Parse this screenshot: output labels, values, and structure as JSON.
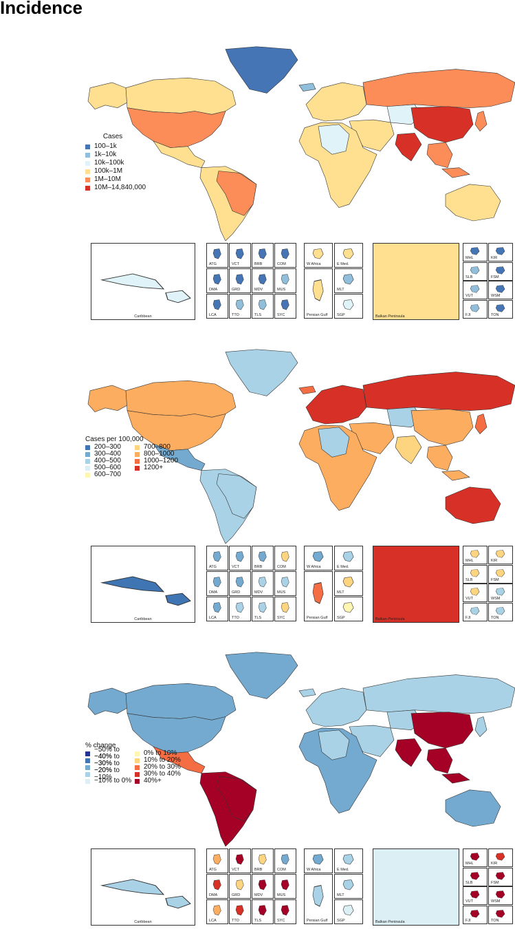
{
  "page_title": "Incidence",
  "colors": {
    "ocean": "#ffffff",
    "border": "#333333",
    "div": [
      "#253494",
      "#3F75B3",
      "#74AACF",
      "#A9D2E6",
      "#DCEFF5",
      "#FFF6B3",
      "#FDD580",
      "#FDAD5F",
      "#F46D43",
      "#D73027",
      "#A50026"
    ]
  },
  "panels": [
    {
      "name": "cases",
      "legend": {
        "title": "Cases",
        "items": [
          {
            "label": "100–1k",
            "color": "#4575B4"
          },
          {
            "label": "1k–10k",
            "color": "#91BFDB"
          },
          {
            "label": "10k–100k",
            "color": "#E0F3F8"
          },
          {
            "label": "100k–1M",
            "color": "#FEE090"
          },
          {
            "label": "1M–10M",
            "color": "#FC8D59"
          },
          {
            "label": "10M–14,840,000",
            "color": "#D73027"
          }
        ]
      },
      "regions": {
        "north_america": "#FC8D59",
        "canada": "#FEE090",
        "alaska": "#FEE090",
        "greenland": "#4575B4",
        "central_america": "#FEE090",
        "south_america": "#FEE090",
        "brazil": "#FC8D59",
        "europe": "#FEE090",
        "africa": "#FEE090",
        "africa_light": "#E0F3F8",
        "russia": "#FC8D59",
        "middle_east": "#FEE090",
        "india": "#D73027",
        "china": "#D73027",
        "se_asia": "#FC8D59",
        "australia": "#FEE090",
        "japan": "#FC8D59",
        "central_asia": "#E0F3F8",
        "iceland": "#91BFDB"
      },
      "insets": {
        "caribbean": {
          "label": "Caribbean",
          "fill": "#E0F3F8"
        },
        "small": [
          {
            "label": "ATG",
            "fill": "#4575B4"
          },
          {
            "label": "VCT",
            "fill": "#4575B4"
          },
          {
            "label": "BRB",
            "fill": "#4575B4"
          },
          {
            "label": "COM",
            "fill": "#4575B4"
          },
          {
            "label": "DMA",
            "fill": "#4575B4"
          },
          {
            "label": "GRD",
            "fill": "#4575B4"
          },
          {
            "label": "MDV",
            "fill": "#4575B4"
          },
          {
            "label": "MUS",
            "fill": "#91BFDB"
          },
          {
            "label": "LCA",
            "fill": "#4575B4"
          },
          {
            "label": "TTO",
            "fill": "#91BFDB"
          },
          {
            "label": "TLS",
            "fill": "#91BFDB"
          },
          {
            "label": "SYC",
            "fill": "#4575B4"
          }
        ],
        "med": [
          {
            "label": "W Africa",
            "fill": "#FEE090"
          },
          {
            "label": "E Med.",
            "fill": "#FEE090"
          },
          {
            "label": "Persian Gulf",
            "fill": "#FEE090"
          },
          {
            "label": "MLT",
            "fill": "#91BFDB"
          },
          {
            "label": "SGP",
            "fill": "#E0F3F8"
          }
        ],
        "balkan": {
          "label": "Balkan Peninsula",
          "fill": "#FEE090"
        },
        "pacific": [
          {
            "label": "MHL",
            "fill": "#4575B4"
          },
          {
            "label": "KIR",
            "fill": "#4575B4"
          },
          {
            "label": "SLB",
            "fill": "#91BFDB"
          },
          {
            "label": "FSM",
            "fill": "#4575B4"
          },
          {
            "label": "VUT",
            "fill": "#91BFDB"
          },
          {
            "label": "WSM",
            "fill": "#4575B4"
          },
          {
            "label": "FJI",
            "fill": "#91BFDB"
          },
          {
            "label": "TON",
            "fill": "#4575B4"
          }
        ]
      }
    },
    {
      "name": "rate",
      "legend": {
        "title": "Cases per 100,000",
        "items": [
          {
            "label": "200–300",
            "color": "#3F75B3"
          },
          {
            "label": "300–400",
            "color": "#74AACF"
          },
          {
            "label": "400–500",
            "color": "#A9D2E6"
          },
          {
            "label": "500–600",
            "color": "#DCEFF5"
          },
          {
            "label": "600–700",
            "color": "#FFF6B3"
          },
          {
            "label": "700–800",
            "color": "#FDD580"
          },
          {
            "label": "800–1000",
            "color": "#FDAD5F"
          },
          {
            "label": "1000–1200",
            "color": "#F46D43"
          },
          {
            "label": "1200+",
            "color": "#D73027"
          }
        ]
      },
      "regions": {
        "north_america": "#FDAD5F",
        "canada": "#FDAD5F",
        "alaska": "#FDAD5F",
        "greenland": "#A9D2E6",
        "central_america": "#74AACF",
        "south_america": "#A9D2E6",
        "brazil": "#A9D2E6",
        "europe": "#D73027",
        "africa": "#FDAD5F",
        "africa_light": "#A9D2E6",
        "russia": "#D73027",
        "middle_east": "#FDAD5F",
        "india": "#FDD580",
        "china": "#FDAD5F",
        "se_asia": "#FDAD5F",
        "australia": "#D73027",
        "japan": "#F46D43",
        "central_asia": "#A9D2E6",
        "iceland": "#F46D43"
      },
      "insets": {
        "caribbean": {
          "label": "Caribbean",
          "fill": "#3F75B3"
        },
        "small": [
          {
            "label": "ATG",
            "fill": "#74AACF"
          },
          {
            "label": "VCT",
            "fill": "#74AACF"
          },
          {
            "label": "BRB",
            "fill": "#74AACF"
          },
          {
            "label": "COM",
            "fill": "#FDD580"
          },
          {
            "label": "DMA",
            "fill": "#74AACF"
          },
          {
            "label": "GRD",
            "fill": "#74AACF"
          },
          {
            "label": "MDV",
            "fill": "#A9D2E6"
          },
          {
            "label": "MUS",
            "fill": "#A9D2E6"
          },
          {
            "label": "LCA",
            "fill": "#74AACF"
          },
          {
            "label": "TTO",
            "fill": "#A9D2E6"
          },
          {
            "label": "TLS",
            "fill": "#A9D2E6"
          },
          {
            "label": "SYC",
            "fill": "#FDD580"
          }
        ],
        "med": [
          {
            "label": "W Africa",
            "fill": "#74AACF"
          },
          {
            "label": "E Med.",
            "fill": "#A9D2E6"
          },
          {
            "label": "Persian Gulf",
            "fill": "#F46D43"
          },
          {
            "label": "MLT",
            "fill": "#FDD580"
          },
          {
            "label": "SGP",
            "fill": "#FFF6B3"
          }
        ],
        "balkan": {
          "label": "Balkan Peninsula",
          "fill": "#D73027"
        },
        "pacific": [
          {
            "label": "MHL",
            "fill": "#FDD580"
          },
          {
            "label": "KIR",
            "fill": "#FDD580"
          },
          {
            "label": "SLB",
            "fill": "#FDD580"
          },
          {
            "label": "FSM",
            "fill": "#FDD580"
          },
          {
            "label": "VUT",
            "fill": "#FDD580"
          },
          {
            "label": "WSM",
            "fill": "#A9D2E6"
          },
          {
            "label": "FJI",
            "fill": "#A9D2E6"
          },
          {
            "label": "TON",
            "fill": "#A9D2E6"
          }
        ]
      }
    },
    {
      "name": "change",
      "legend": {
        "title": "% change",
        "items": [
          {
            "label": "−50% to −40%",
            "color": "#253494"
          },
          {
            "label": "−40% to −30%",
            "color": "#3F75B3"
          },
          {
            "label": "−30% to −20%",
            "color": "#74AACF"
          },
          {
            "label": "−20% to −10%",
            "color": "#A9D2E6"
          },
          {
            "label": "−10% to 0%",
            "color": "#DCEFF5"
          },
          {
            "label": "0% to 10%",
            "color": "#FFF6B3"
          },
          {
            "label": "10% to 20%",
            "color": "#FDD580"
          },
          {
            "label": "20% to 30%",
            "color": "#F46D43"
          },
          {
            "label": "30% to 40%",
            "color": "#D73027"
          },
          {
            "label": "40%+",
            "color": "#A50026"
          }
        ]
      },
      "regions": {
        "north_america": "#74AACF",
        "canada": "#74AACF",
        "alaska": "#74AACF",
        "greenland": "#74AACF",
        "central_america": "#F46D43",
        "south_america": "#A50026",
        "brazil": "#A50026",
        "europe": "#A9D2E6",
        "africa": "#74AACF",
        "africa_light": "#A9D2E6",
        "russia": "#A9D2E6",
        "middle_east": "#A9D2E6",
        "india": "#A50026",
        "china": "#A50026",
        "se_asia": "#A50026",
        "australia": "#74AACF",
        "japan": "#A9D2E6",
        "central_asia": "#A9D2E6",
        "iceland": "#A9D2E6"
      },
      "insets": {
        "caribbean": {
          "label": "Caribbean",
          "fill": "#A9D2E6"
        },
        "small": [
          {
            "label": "ATG",
            "fill": "#FDAD5F"
          },
          {
            "label": "VCT",
            "fill": "#A50026"
          },
          {
            "label": "BRB",
            "fill": "#FDD580"
          },
          {
            "label": "COM",
            "fill": "#74AACF"
          },
          {
            "label": "DMA",
            "fill": "#D73027"
          },
          {
            "label": "GRD",
            "fill": "#FDD580"
          },
          {
            "label": "MDV",
            "fill": "#A50026"
          },
          {
            "label": "MUS",
            "fill": "#A50026"
          },
          {
            "label": "LCA",
            "fill": "#FDAD5F"
          },
          {
            "label": "TTO",
            "fill": "#D73027"
          },
          {
            "label": "TLS",
            "fill": "#A50026"
          },
          {
            "label": "SYC",
            "fill": "#A50026"
          }
        ],
        "med": [
          {
            "label": "W Africa",
            "fill": "#74AACF"
          },
          {
            "label": "E Med.",
            "fill": "#A9D2E6"
          },
          {
            "label": "Persian Gulf",
            "fill": "#A9D2E6"
          },
          {
            "label": "MLT",
            "fill": "#A9D2E6"
          },
          {
            "label": "SGP",
            "fill": "#DCEFF5"
          }
        ],
        "balkan": {
          "label": "Balkan Peninsula",
          "fill": "#DCEFF5"
        },
        "pacific": [
          {
            "label": "MHL",
            "fill": "#A50026"
          },
          {
            "label": "KIR",
            "fill": "#D73027"
          },
          {
            "label": "SLB",
            "fill": "#A50026"
          },
          {
            "label": "FSM",
            "fill": "#A50026"
          },
          {
            "label": "VUT",
            "fill": "#A50026"
          },
          {
            "label": "WSM",
            "fill": "#A50026"
          },
          {
            "label": "FJI",
            "fill": "#A50026"
          },
          {
            "label": "TON",
            "fill": "#A50026"
          }
        ]
      }
    }
  ]
}
